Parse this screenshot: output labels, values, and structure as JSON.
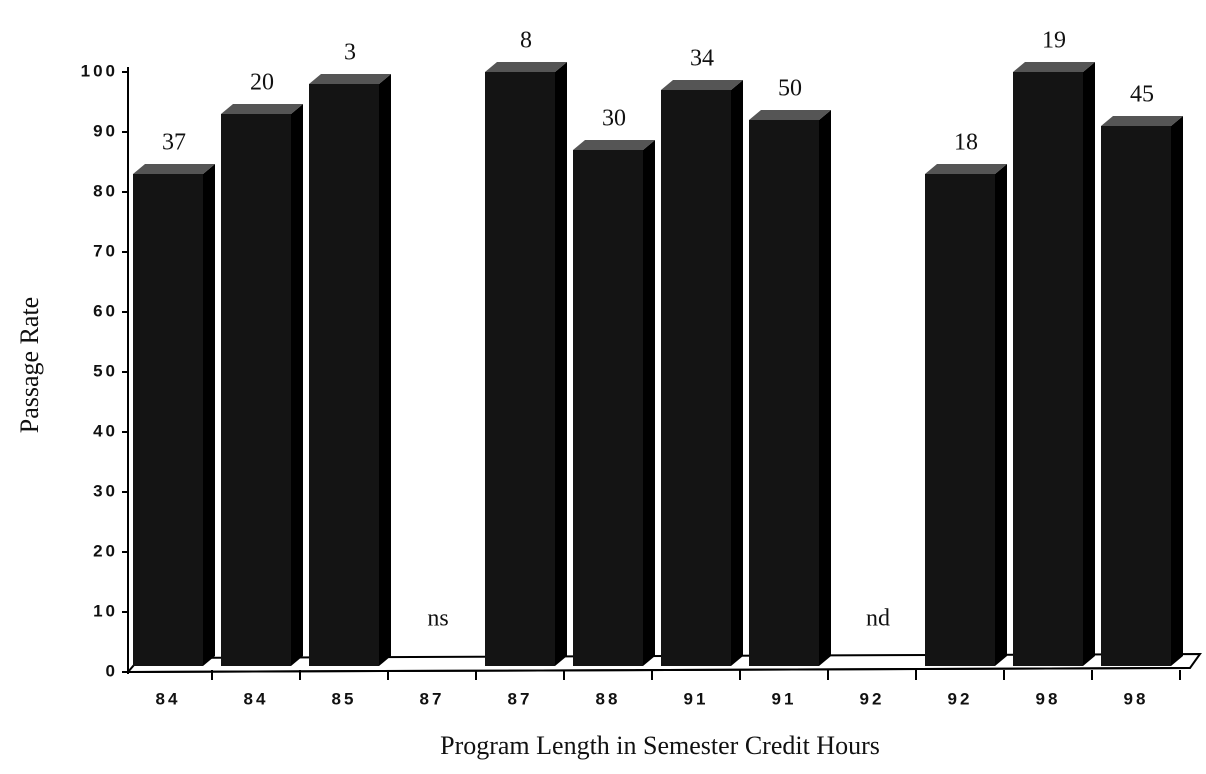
{
  "chart_data": {
    "type": "bar3d",
    "x_label": "Program Length in Semester Credit Hours",
    "y_label": "Passage Rate",
    "categories": [
      "84",
      "84",
      "85",
      "87",
      "87",
      "88",
      "91",
      "91",
      "92",
      "92",
      "98",
      "98"
    ],
    "values": [
      83,
      93,
      98,
      null,
      100,
      87,
      97,
      92,
      null,
      83,
      100,
      91
    ],
    "bar_labels": [
      "37",
      "20",
      "3",
      "ns",
      "8",
      "30",
      "34",
      "50",
      "nd",
      "18",
      "19",
      "45"
    ],
    "color": "#141414",
    "ylim": [
      0,
      100
    ],
    "yticks": [
      0,
      10,
      20,
      30,
      40,
      50,
      60,
      70,
      80,
      90,
      100
    ]
  }
}
